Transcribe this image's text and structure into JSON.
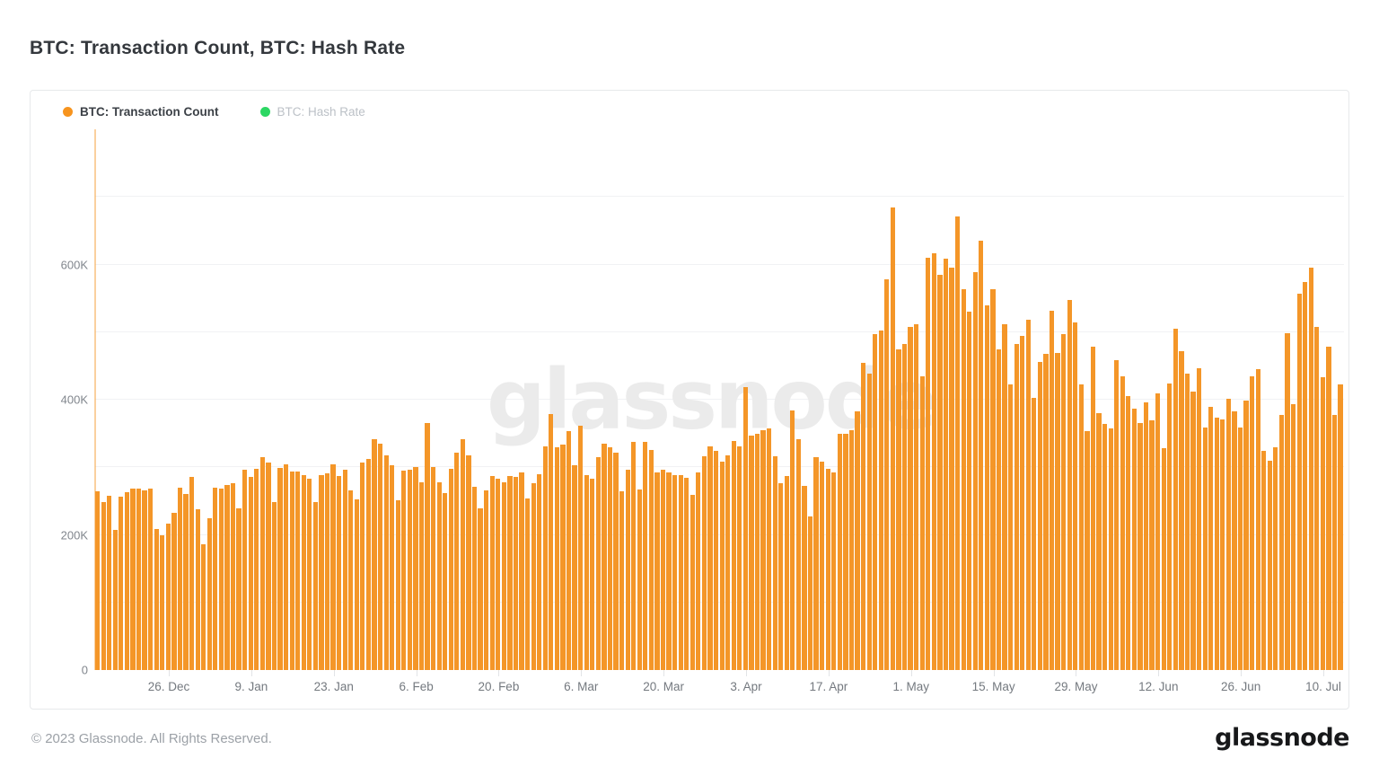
{
  "page": {
    "title": "BTC: Transaction Count, BTC: Hash Rate",
    "watermark": "glassnode",
    "footer_copyright": "© 2023 Glassnode. All Rights Reserved.",
    "footer_logo": "glassnode"
  },
  "legend": [
    {
      "label": "BTC: Transaction Count",
      "color": "#f7941e",
      "enabled": true
    },
    {
      "label": "BTC: Hash Rate",
      "color": "#2cd763",
      "enabled": false
    }
  ],
  "colors": {
    "bar": "#f49628",
    "axis_line": "rgba(244,150,40,0.45)",
    "gridline": "#f1f2f4",
    "watermark": "#ebebeb",
    "title_text": "#34383d",
    "tick_text": "#81868d"
  },
  "chart_data": {
    "type": "bar",
    "title": "BTC: Transaction Count, BTC: Hash Rate",
    "series_name": "BTC: Transaction Count",
    "unit": "transactions per day (values in thousands, K)",
    "x_description": "daily bars, mid-Dec 2022 through mid-Jul 2023",
    "y_max": 800,
    "y_ticks": [
      {
        "label": "0",
        "value": 0
      },
      {
        "label": "200K",
        "value": 200
      },
      {
        "label": "400K",
        "value": 400
      },
      {
        "label": "600K",
        "value": 600
      }
    ],
    "gridline_step": 100,
    "x_ticks": [
      {
        "label": "26. Dec",
        "day": 12
      },
      {
        "label": "9. Jan",
        "day": 26
      },
      {
        "label": "23. Jan",
        "day": 40
      },
      {
        "label": "6. Feb",
        "day": 54
      },
      {
        "label": "20. Feb",
        "day": 68
      },
      {
        "label": "6. Mar",
        "day": 82
      },
      {
        "label": "20. Mar",
        "day": 96
      },
      {
        "label": "3. Apr",
        "day": 110
      },
      {
        "label": "17. Apr",
        "day": 124
      },
      {
        "label": "1. May",
        "day": 138
      },
      {
        "label": "15. May",
        "day": 152
      },
      {
        "label": "29. May",
        "day": 166
      },
      {
        "label": "12. Jun",
        "day": 180
      },
      {
        "label": "26. Jun",
        "day": 194
      },
      {
        "label": "10. Jul",
        "day": 208
      }
    ],
    "values": [
      265,
      248,
      258,
      207,
      256,
      263,
      268,
      268,
      266,
      268,
      209,
      199,
      217,
      233,
      270,
      261,
      286,
      238,
      186,
      224,
      270,
      269,
      274,
      276,
      239,
      297,
      286,
      298,
      315,
      307,
      249,
      299,
      305,
      294,
      294,
      289,
      283,
      249,
      289,
      291,
      304,
      287,
      297,
      266,
      252,
      307,
      312,
      342,
      335,
      317,
      303,
      251,
      295,
      297,
      300,
      278,
      365,
      300,
      278,
      262,
      298,
      322,
      342,
      317,
      271,
      239,
      266,
      287,
      283,
      278,
      287,
      286,
      292,
      254,
      276,
      290,
      331,
      379,
      330,
      334,
      353,
      303,
      362,
      288,
      283,
      315,
      335,
      330,
      322,
      264,
      296,
      337,
      267,
      337,
      326,
      293,
      296,
      293,
      288,
      288,
      285,
      259,
      293,
      316,
      331,
      324,
      308,
      318,
      339,
      331,
      419,
      347,
      350,
      355,
      357,
      316,
      276,
      287,
      384,
      341,
      273,
      227,
      315,
      308,
      298,
      293,
      350,
      350,
      355,
      383,
      455,
      439,
      497,
      503,
      578,
      685,
      475,
      483,
      507,
      512,
      435,
      610,
      616,
      585,
      608,
      596,
      671,
      563,
      530,
      589,
      635,
      540,
      563,
      475,
      512,
      423,
      483,
      494,
      518,
      403,
      456,
      468,
      531,
      469,
      497,
      548,
      514,
      422,
      353,
      478,
      380,
      364,
      357,
      459,
      435,
      406,
      387,
      365,
      396,
      370,
      409,
      328,
      424,
      505,
      472,
      438,
      412,
      446,
      359,
      389,
      374,
      371,
      401,
      383,
      359,
      399,
      435,
      445,
      324,
      310,
      330,
      377,
      498,
      393,
      557,
      574,
      595,
      507,
      433,
      478,
      377,
      423
    ],
    "legend_position": "top-left",
    "grid": "horizontal-only"
  }
}
